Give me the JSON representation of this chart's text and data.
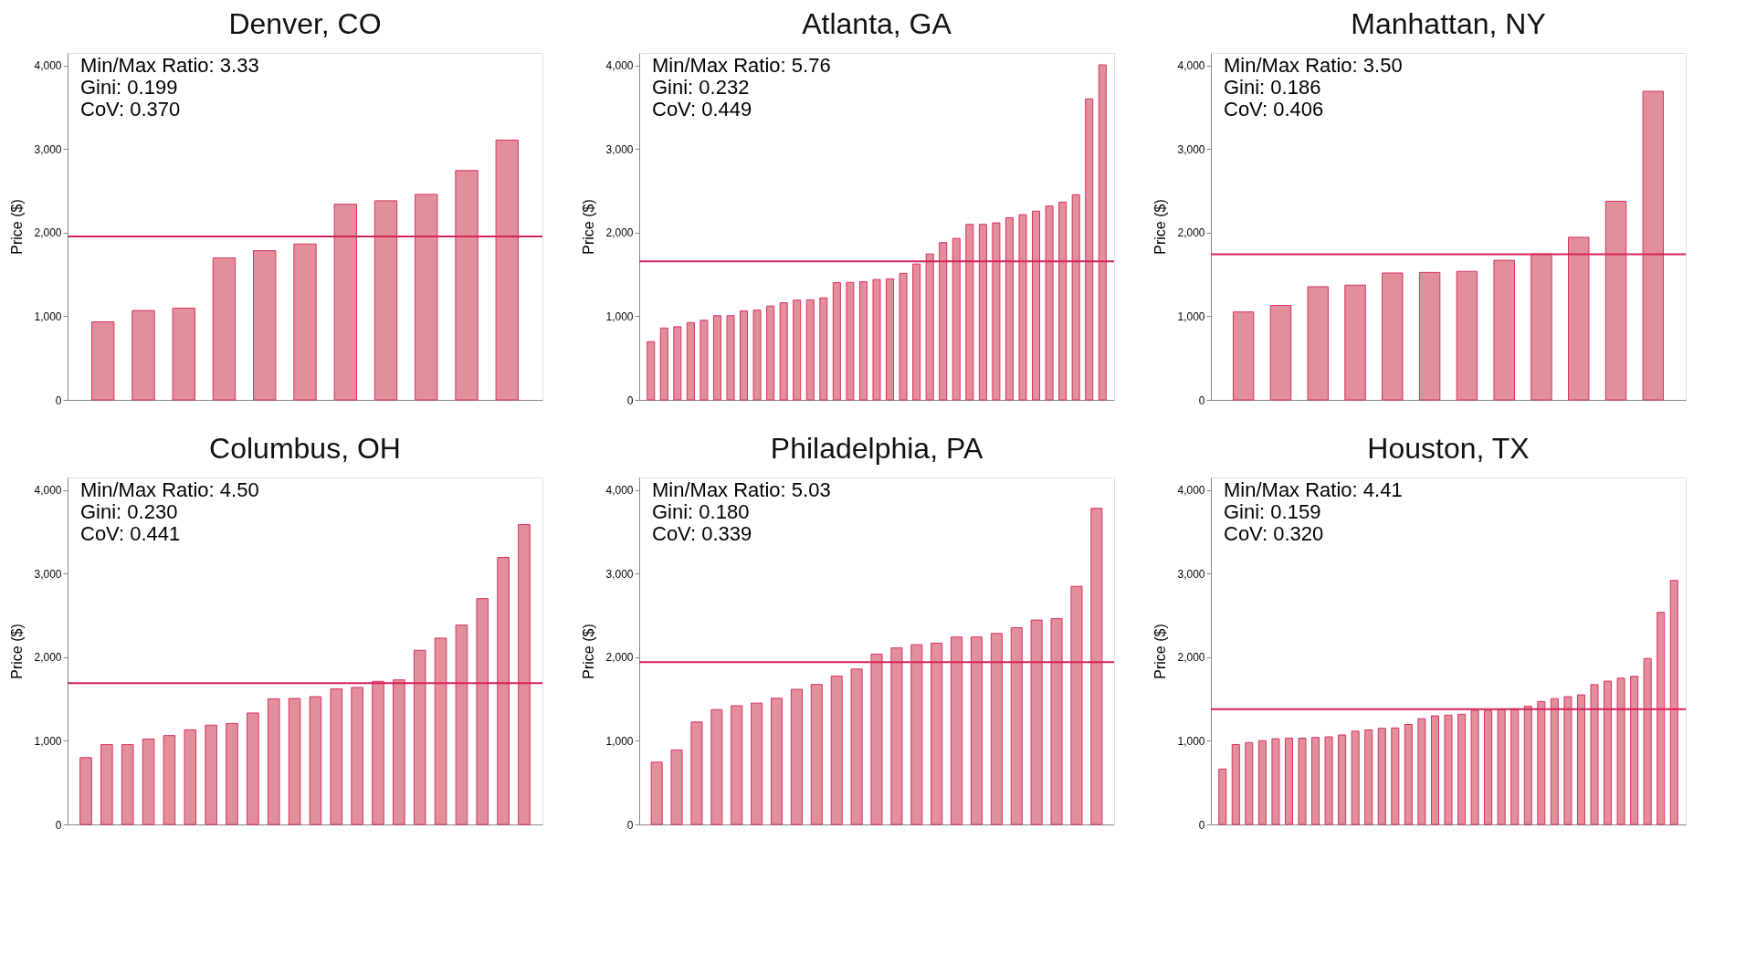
{
  "chart_data": [
    {
      "type": "bar",
      "title": "Denver, CO",
      "ylabel": "Price ($)",
      "annotations": [
        "Min/Max Ratio: 3.33",
        "Gini: 0.199",
        "CoV: 0.370"
      ],
      "categories": [
        null,
        null,
        null,
        null,
        null,
        null,
        null,
        null,
        null,
        null,
        null
      ],
      "series": [
        {
          "color": "#e08a95",
          "values": [
            934,
            1069,
            1097,
            1698,
            1785,
            1865,
            2340,
            2382,
            2458,
            2743,
            3108
          ]
        }
      ],
      "ref_lines": [
        {
          "axis": "y",
          "value": 1955,
          "color": "#d6245a"
        }
      ],
      "ylim": [
        0,
        4150
      ],
      "yticks": [
        0,
        {
          "value": 1000,
          "label": "1,000"
        },
        {
          "value": 2000,
          "label": "2,000"
        },
        {
          "value": 3000,
          "label": "3,000"
        },
        {
          "value": 4000,
          "label": "4,000"
        }
      ],
      "grid": false,
      "tick_labels": "y"
    },
    {
      "type": "bar",
      "title": "Atlanta, GA",
      "ylabel": "Price ($)",
      "annotations": [
        "Min/Max Ratio: 5.76",
        "Gini: 0.232",
        "CoV: 0.449"
      ],
      "categories": [
        null,
        null,
        null,
        null,
        null,
        null,
        null,
        null,
        null,
        null,
        null,
        null,
        null,
        null,
        null,
        null,
        null,
        null,
        null,
        null,
        null,
        null,
        null,
        null,
        null,
        null,
        null,
        null,
        null,
        null,
        null,
        null,
        null,
        null,
        null
      ],
      "series": [
        {
          "color": "#e08a95",
          "values": [
            697,
            860,
            875,
            925,
            953,
            1007,
            1007,
            1065,
            1073,
            1123,
            1162,
            1193,
            1197,
            1220,
            1402,
            1406,
            1413,
            1440,
            1448,
            1514,
            1626,
            1746,
            1882,
            1932,
            2099,
            2099,
            2118,
            2180,
            2215,
            2258,
            2319,
            2366,
            2455,
            3601,
            4008
          ]
        }
      ],
      "ref_lines": [
        {
          "axis": "y",
          "value": 1657,
          "color": "#d6245a"
        }
      ],
      "ylim": [
        0,
        4150
      ],
      "yticks": [
        0,
        {
          "value": 1000,
          "label": "1,000"
        },
        {
          "value": 2000,
          "label": "2,000"
        },
        {
          "value": 3000,
          "label": "3,000"
        },
        {
          "value": 4000,
          "label": "4,000"
        }
      ],
      "grid": false,
      "tick_labels": "y"
    },
    {
      "type": "bar",
      "title": "Manhattan, NY",
      "ylabel": "Price ($)",
      "annotations": [
        "Min/Max Ratio: 3.50",
        "Gini: 0.186",
        "CoV: 0.406"
      ],
      "categories": [
        null,
        null,
        null,
        null,
        null,
        null,
        null,
        null,
        null,
        null,
        null,
        null
      ],
      "series": [
        {
          "color": "#e08a95",
          "values": [
            1052,
            1129,
            1354,
            1373,
            1518,
            1525,
            1537,
            1670,
            1746,
            1945,
            2376,
            3691
          ]
        }
      ],
      "ref_lines": [
        {
          "axis": "y",
          "value": 1743,
          "color": "#d6245a"
        }
      ],
      "ylim": [
        0,
        4150
      ],
      "yticks": [
        0,
        {
          "value": 1000,
          "label": "1,000"
        },
        {
          "value": 2000,
          "label": "2,000"
        },
        {
          "value": 3000,
          "label": "3,000"
        },
        {
          "value": 4000,
          "label": "4,000"
        }
      ],
      "grid": false,
      "tick_labels": "y"
    },
    {
      "type": "bar",
      "title": "Columbus, OH",
      "ylabel": "Price ($)",
      "annotations": [
        "Min/Max Ratio: 4.50",
        "Gini: 0.230",
        "CoV: 0.441"
      ],
      "categories": [
        null,
        null,
        null,
        null,
        null,
        null,
        null,
        null,
        null,
        null,
        null,
        null,
        null,
        null,
        null,
        null,
        null,
        null,
        null,
        null,
        null,
        null
      ],
      "series": [
        {
          "color": "#e08a95",
          "values": [
            799,
            955,
            955,
            1021,
            1063,
            1132,
            1188,
            1208,
            1333,
            1503,
            1507,
            1528,
            1622,
            1639,
            1712,
            1729,
            2083,
            2229,
            2385,
            2701,
            3194,
            3587
          ]
        }
      ],
      "ref_lines": [
        {
          "axis": "y",
          "value": 1691,
          "color": "#d6245a"
        }
      ],
      "ylim": [
        0,
        4150
      ],
      "yticks": [
        0,
        {
          "value": 1000,
          "label": "1,000"
        },
        {
          "value": 2000,
          "label": "2,000"
        },
        {
          "value": 3000,
          "label": "3,000"
        },
        {
          "value": 4000,
          "label": "4,000"
        }
      ],
      "grid": false,
      "tick_labels": "y"
    },
    {
      "type": "bar",
      "title": "Philadelphia, PA",
      "ylabel": "Price ($)",
      "annotations": [
        "Min/Max Ratio: 5.03",
        "Gini: 0.180",
        "CoV: 0.339"
      ],
      "categories": [
        null,
        null,
        null,
        null,
        null,
        null,
        null,
        null,
        null,
        null,
        null,
        null,
        null,
        null,
        null,
        null,
        null,
        null,
        null,
        null,
        null,
        null,
        null
      ],
      "series": [
        {
          "color": "#e08a95",
          "values": [
            745,
            891,
            1225,
            1374,
            1420,
            1451,
            1509,
            1616,
            1674,
            1774,
            1858,
            2038,
            2111,
            2150,
            2169,
            2242,
            2242,
            2284,
            2353,
            2445,
            2461,
            2848,
            3781
          ]
        }
      ],
      "ref_lines": [
        {
          "axis": "y",
          "value": 1942,
          "color": "#d6245a"
        }
      ],
      "ylim": [
        0,
        4150
      ],
      "yticks": [
        0,
        {
          "value": 1000,
          "label": "1,000"
        },
        {
          "value": 2000,
          "label": "2,000"
        },
        {
          "value": 3000,
          "label": "3,000"
        },
        {
          "value": 4000,
          "label": "4,000"
        }
      ],
      "grid": false,
      "tick_labels": "y"
    },
    {
      "type": "bar",
      "title": "Houston, TX",
      "ylabel": "Price ($)",
      "annotations": [
        "Min/Max Ratio: 4.41",
        "Gini: 0.159",
        "CoV: 0.320"
      ],
      "categories": [
        null,
        null,
        null,
        null,
        null,
        null,
        null,
        null,
        null,
        null,
        null,
        null,
        null,
        null,
        null,
        null,
        null,
        null,
        null,
        null,
        null,
        null,
        null,
        null,
        null,
        null,
        null,
        null,
        null,
        null,
        null,
        null,
        null,
        null,
        null
      ],
      "series": [
        {
          "color": "#e08a95",
          "values": [
            663,
            956,
            979,
            1002,
            1025,
            1032,
            1032,
            1040,
            1048,
            1070,
            1116,
            1131,
            1150,
            1154,
            1196,
            1265,
            1299,
            1307,
            1318,
            1364,
            1364,
            1375,
            1383,
            1413,
            1470,
            1505,
            1528,
            1550,
            1672,
            1714,
            1749,
            1771,
            1985,
            2537,
            2918
          ]
        }
      ],
      "ref_lines": [
        {
          "axis": "y",
          "value": 1379,
          "color": "#d6245a"
        }
      ],
      "ylim": [
        0,
        4150
      ],
      "yticks": [
        0,
        {
          "value": 1000,
          "label": "1,000"
        },
        {
          "value": 2000,
          "label": "2,000"
        },
        {
          "value": 3000,
          "label": "3,000"
        },
        {
          "value": 4000,
          "label": "4,000"
        }
      ],
      "grid": false,
      "tick_labels": "y"
    }
  ]
}
